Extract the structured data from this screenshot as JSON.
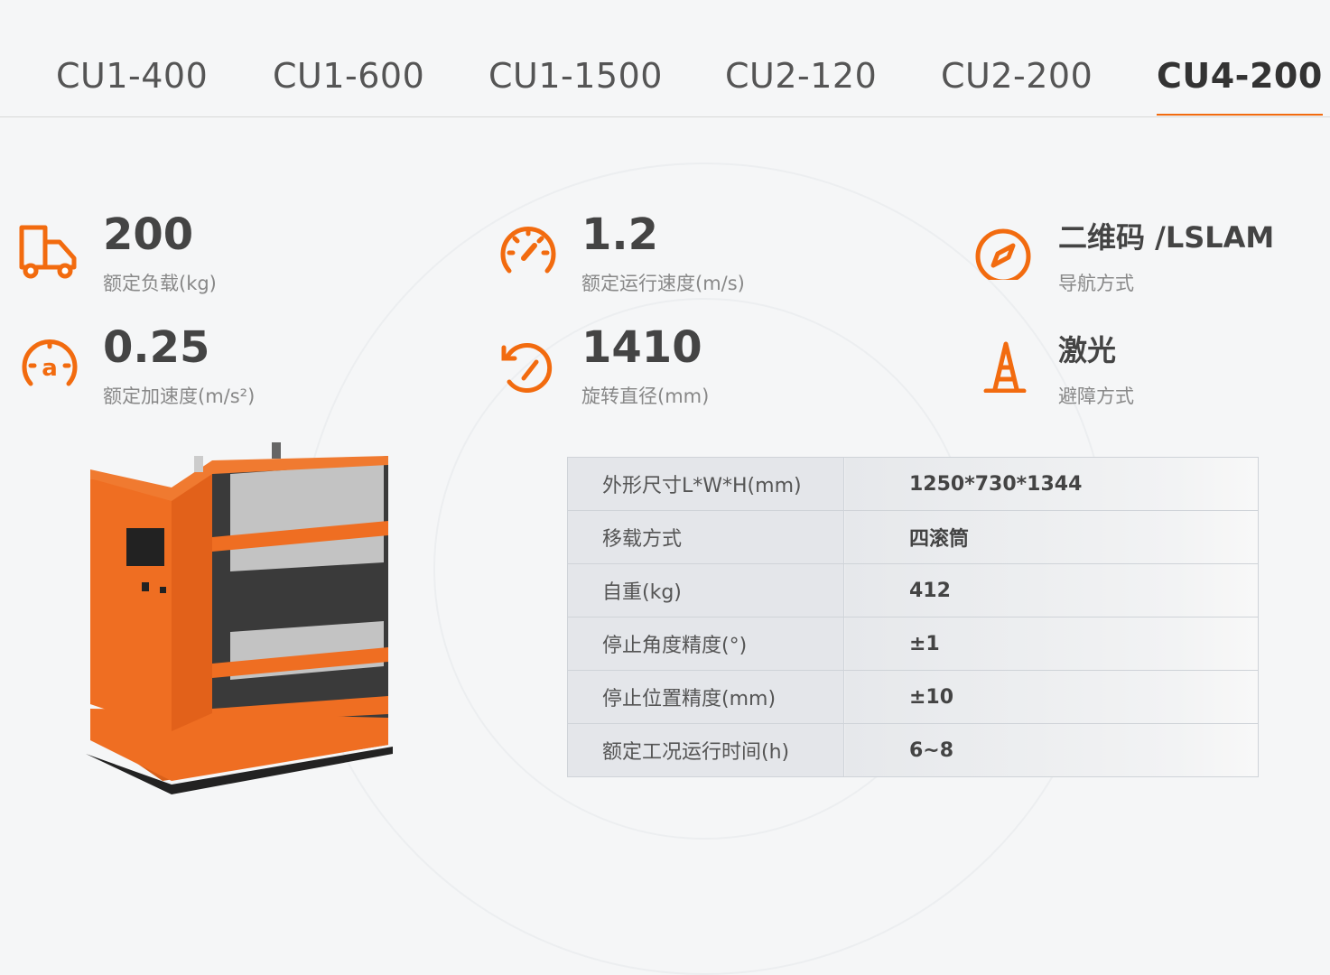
{
  "tabs": [
    {
      "label": "CU1-400"
    },
    {
      "label": "CU1-600"
    },
    {
      "label": "CU1-1500"
    },
    {
      "label": "CU2-120"
    },
    {
      "label": "CU2-200"
    },
    {
      "label": "CU4-200",
      "active": true
    }
  ],
  "accent": "#f26b0f",
  "stats": [
    {
      "icon": "truck-icon",
      "value": "200",
      "label": "额定负载(kg)"
    },
    {
      "icon": "speedometer-icon",
      "value": "1.2",
      "label": "额定运行速度(m/s)"
    },
    {
      "icon": "compass-icon",
      "value": "二维码 /LSLAM",
      "label": "导航方式"
    },
    {
      "icon": "acceleration-gauge-icon",
      "value": "0.25",
      "label": "额定加速度(m/s²)"
    },
    {
      "icon": "rotation-icon",
      "value": "1410",
      "label": "旋转直径(mm)"
    },
    {
      "icon": "traffic-cone-icon",
      "value": "激光",
      "label": "避障方式"
    }
  ],
  "specs": [
    {
      "key": "外形尺寸L*W*H(mm)",
      "value": "1250*730*1344"
    },
    {
      "key": "移载方式",
      "value": "四滚筒"
    },
    {
      "key": "自重(kg)",
      "value": "412"
    },
    {
      "key": "停止角度精度(°)",
      "value": "±1"
    },
    {
      "key": "停止位置精度(mm)",
      "value": "±10"
    },
    {
      "key": "额定工况运行时间(h)",
      "value": "6~8"
    }
  ]
}
